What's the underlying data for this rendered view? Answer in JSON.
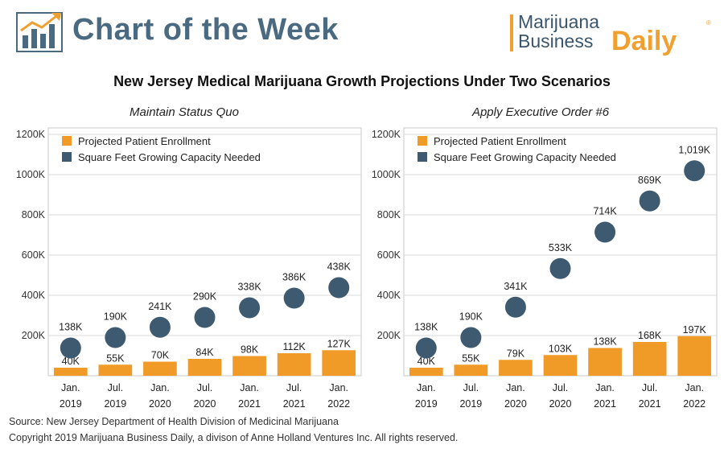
{
  "header": {
    "title": "Chart of the Week",
    "brand_line1": "Marijuana",
    "brand_line2": "Business",
    "brand_daily": "Daily",
    "brand_mark": "®"
  },
  "main_title": "New Jersey Medical Marijuana Growth Projections Under Two Scenarios",
  "colors": {
    "bar": "#f09a27",
    "dot": "#3e5a71",
    "header_blue": "#4a6a82",
    "brand_orange": "#f0a030"
  },
  "chart_data": [
    {
      "type": "bar",
      "title": "Maintain Status Quo",
      "categories": [
        [
          "Jan.",
          "2019"
        ],
        [
          "Jul.",
          "2019"
        ],
        [
          "Jan.",
          "2020"
        ],
        [
          "Jul.",
          "2020"
        ],
        [
          "Jan.",
          "2021"
        ],
        [
          "Jul.",
          "2021"
        ],
        [
          "Jan.",
          "2022"
        ]
      ],
      "ylim": [
        0,
        1200000
      ],
      "yticks": [
        200000,
        400000,
        600000,
        800000,
        1000000,
        1200000
      ],
      "ytick_labels": [
        "200K",
        "400K",
        "600K",
        "800K",
        "1000K",
        "1200K"
      ],
      "grid": true,
      "legend_position": "top-left",
      "series": [
        {
          "name": "Projected Patient Enrollment",
          "mark": "bar",
          "values": [
            40000,
            55000,
            70000,
            84000,
            98000,
            112000,
            127000
          ],
          "labels": [
            "40K",
            "55K",
            "70K",
            "84K",
            "98K",
            "112K",
            "127K"
          ]
        },
        {
          "name": "Square Feet Growing Capacity Needed",
          "mark": "dot",
          "values": [
            138000,
            190000,
            241000,
            290000,
            338000,
            386000,
            438000
          ],
          "labels": [
            "138K",
            "190K",
            "241K",
            "290K",
            "338K",
            "386K",
            "438K"
          ]
        }
      ]
    },
    {
      "type": "bar",
      "title": "Apply Executive Order #6",
      "categories": [
        [
          "Jan.",
          "2019"
        ],
        [
          "Jul.",
          "2019"
        ],
        [
          "Jan.",
          "2020"
        ],
        [
          "Jul.",
          "2020"
        ],
        [
          "Jan.",
          "2021"
        ],
        [
          "Jul.",
          "2021"
        ],
        [
          "Jan.",
          "2022"
        ]
      ],
      "ylim": [
        0,
        1200000
      ],
      "yticks": [
        200000,
        400000,
        600000,
        800000,
        1000000,
        1200000
      ],
      "ytick_labels": [
        "200K",
        "400K",
        "600K",
        "800K",
        "1000K",
        "1200K"
      ],
      "grid": true,
      "legend_position": "top-left",
      "series": [
        {
          "name": "Projected Patient Enrollment",
          "mark": "bar",
          "values": [
            40000,
            55000,
            79000,
            103000,
            138000,
            168000,
            197000
          ],
          "labels": [
            "40K",
            "55K",
            "79K",
            "103K",
            "138K",
            "168K",
            "197K"
          ]
        },
        {
          "name": "Square Feet Growing Capacity Needed",
          "mark": "dot",
          "values": [
            138000,
            190000,
            341000,
            533000,
            714000,
            869000,
            1019000
          ],
          "labels": [
            "138K",
            "190K",
            "341K",
            "533K",
            "714K",
            "869K",
            "1,019K"
          ]
        }
      ]
    }
  ],
  "footer": {
    "source": "Source: New Jersey Department of Health Division of Medicinal Marijuana",
    "copyright": "Copyright 2019 Marijuana Business Daily, a divison of Anne Holland Ventures Inc. All rights reserved."
  }
}
